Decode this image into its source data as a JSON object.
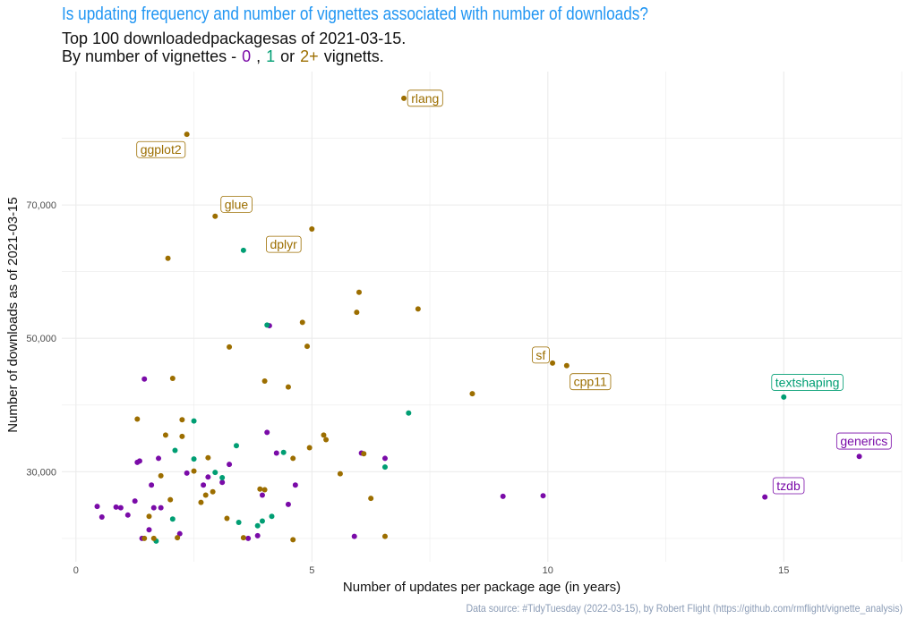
{
  "title": "Is updating frequency and number of vignettes associated with number of downloads?",
  "subtitle_line1": "Top 100 downloadedpackagesas of 2021-03-15.",
  "subtitle_line2": {
    "prefix": "By number of vignettes -",
    "v0": "0",
    "sep1": ",",
    "v1": "1",
    "sep2": "or",
    "v2": "2+",
    "suffix": "vignetts."
  },
  "caption": "Data source: #TidyTuesday (2022-03-15), by Robert Flight (https://github.com/rmflight/vignette_analysis)",
  "colors": {
    "v0": "#7a0ba8",
    "v1": "#009e73",
    "v2": "#9c6e00",
    "grid": "#ebebeb"
  },
  "chart_data": {
    "type": "scatter",
    "xlabel": "Number of updates per package age (in years)",
    "ylabel": "Number of downloads as of 2021-03-15",
    "xlim": [
      -0.3,
      17.5
    ],
    "ylim": [
      16500,
      90000
    ],
    "x_ticks": [
      {
        "value": 0,
        "label": "0"
      },
      {
        "value": 5,
        "label": "5"
      },
      {
        "value": 10,
        "label": "10"
      },
      {
        "value": 15,
        "label": "15"
      }
    ],
    "y_ticks": [
      {
        "value": 30000,
        "label": "30,000"
      },
      {
        "value": 50000,
        "label": "50,000"
      },
      {
        "value": 70000,
        "label": "70,000"
      }
    ],
    "x_minor": [
      2.5,
      7.5,
      12.5,
      17.5
    ],
    "y_minor": [
      20000,
      40000,
      60000,
      80000
    ],
    "grid": true,
    "series": [
      {
        "group": "v0",
        "points": [
          [
            0.45,
            24800
          ],
          [
            0.55,
            23200
          ],
          [
            0.85,
            24700
          ],
          [
            0.95,
            24600
          ],
          [
            1.1,
            23500
          ],
          [
            1.25,
            25600
          ],
          [
            1.3,
            31400
          ],
          [
            1.35,
            31600
          ],
          [
            1.4,
            20000
          ],
          [
            1.45,
            43900
          ],
          [
            1.55,
            21300
          ],
          [
            1.6,
            28000
          ],
          [
            1.65,
            24600
          ],
          [
            1.75,
            32000
          ],
          [
            1.8,
            24600
          ],
          [
            2.2,
            20700
          ],
          [
            2.35,
            29800
          ],
          [
            2.7,
            28000
          ],
          [
            2.8,
            29200
          ],
          [
            3.1,
            28400
          ],
          [
            3.25,
            31100
          ],
          [
            3.65,
            20000
          ],
          [
            3.85,
            20400
          ],
          [
            3.95,
            26500
          ],
          [
            4.05,
            35900
          ],
          [
            4.1,
            51900
          ],
          [
            4.25,
            32800
          ],
          [
            4.5,
            25100
          ],
          [
            4.65,
            28000
          ],
          [
            5.9,
            20300
          ],
          [
            6.05,
            32800
          ],
          [
            6.55,
            32000
          ],
          [
            9.05,
            26300
          ],
          [
            9.9,
            26400
          ],
          [
            14.6,
            26200
          ],
          [
            16.6,
            32300
          ]
        ]
      },
      {
        "group": "v1",
        "points": [
          [
            1.7,
            19600
          ],
          [
            2.05,
            22900
          ],
          [
            2.1,
            33200
          ],
          [
            2.5,
            31900
          ],
          [
            2.5,
            37600
          ],
          [
            2.95,
            29900
          ],
          [
            3.1,
            29100
          ],
          [
            3.4,
            33900
          ],
          [
            3.45,
            22400
          ],
          [
            3.55,
            63200
          ],
          [
            3.85,
            21900
          ],
          [
            3.95,
            22600
          ],
          [
            4.05,
            52000
          ],
          [
            4.15,
            23300
          ],
          [
            4.4,
            32900
          ],
          [
            6.55,
            30700
          ],
          [
            7.05,
            38800
          ],
          [
            15.0,
            41200
          ]
        ]
      },
      {
        "group": "v2",
        "points": [
          [
            1.3,
            37900
          ],
          [
            1.45,
            20000
          ],
          [
            1.55,
            23300
          ],
          [
            1.65,
            20000
          ],
          [
            1.8,
            29400
          ],
          [
            1.9,
            35500
          ],
          [
            1.95,
            62000
          ],
          [
            2.0,
            25800
          ],
          [
            2.05,
            44000
          ],
          [
            2.15,
            20100
          ],
          [
            2.25,
            37800
          ],
          [
            2.25,
            35300
          ],
          [
            2.35,
            80600
          ],
          [
            2.5,
            30100
          ],
          [
            2.65,
            25400
          ],
          [
            2.75,
            26500
          ],
          [
            2.8,
            32100
          ],
          [
            2.9,
            27000
          ],
          [
            2.95,
            68300
          ],
          [
            3.2,
            23000
          ],
          [
            3.25,
            48700
          ],
          [
            3.55,
            20100
          ],
          [
            3.9,
            27400
          ],
          [
            4.0,
            43600
          ],
          [
            4.0,
            27300
          ],
          [
            4.5,
            42700
          ],
          [
            4.6,
            32000
          ],
          [
            4.6,
            19800
          ],
          [
            4.8,
            52400
          ],
          [
            4.9,
            48800
          ],
          [
            4.95,
            33600
          ],
          [
            5.0,
            66400
          ],
          [
            5.25,
            35500
          ],
          [
            5.3,
            34800
          ],
          [
            5.6,
            29700
          ],
          [
            5.95,
            53900
          ],
          [
            6.0,
            56900
          ],
          [
            6.1,
            32700
          ],
          [
            6.25,
            26000
          ],
          [
            6.55,
            20300
          ],
          [
            6.95,
            86000
          ],
          [
            7.25,
            54400
          ],
          [
            8.4,
            41700
          ],
          [
            10.1,
            46300
          ],
          [
            10.4,
            45900
          ]
        ]
      }
    ],
    "annotations": [
      {
        "label": "rlang",
        "group": "v2",
        "x": 7.4,
        "y": 86000
      },
      {
        "label": "ggplot2",
        "group": "v2",
        "x": 1.8,
        "y": 78300
      },
      {
        "label": "glue",
        "group": "v2",
        "x": 3.4,
        "y": 70100
      },
      {
        "label": "dplyr",
        "group": "v2",
        "x": 4.4,
        "y": 64100
      },
      {
        "label": "sf",
        "group": "v2",
        "x": 9.85,
        "y": 47500
      },
      {
        "label": "cpp11",
        "group": "v2",
        "x": 10.9,
        "y": 43500
      },
      {
        "label": "textshaping",
        "group": "v1",
        "x": 15.5,
        "y": 43400
      },
      {
        "label": "generics",
        "group": "v0",
        "x": 16.7,
        "y": 34600
      },
      {
        "label": "tzdb",
        "group": "v0",
        "x": 15.1,
        "y": 27900
      }
    ]
  }
}
